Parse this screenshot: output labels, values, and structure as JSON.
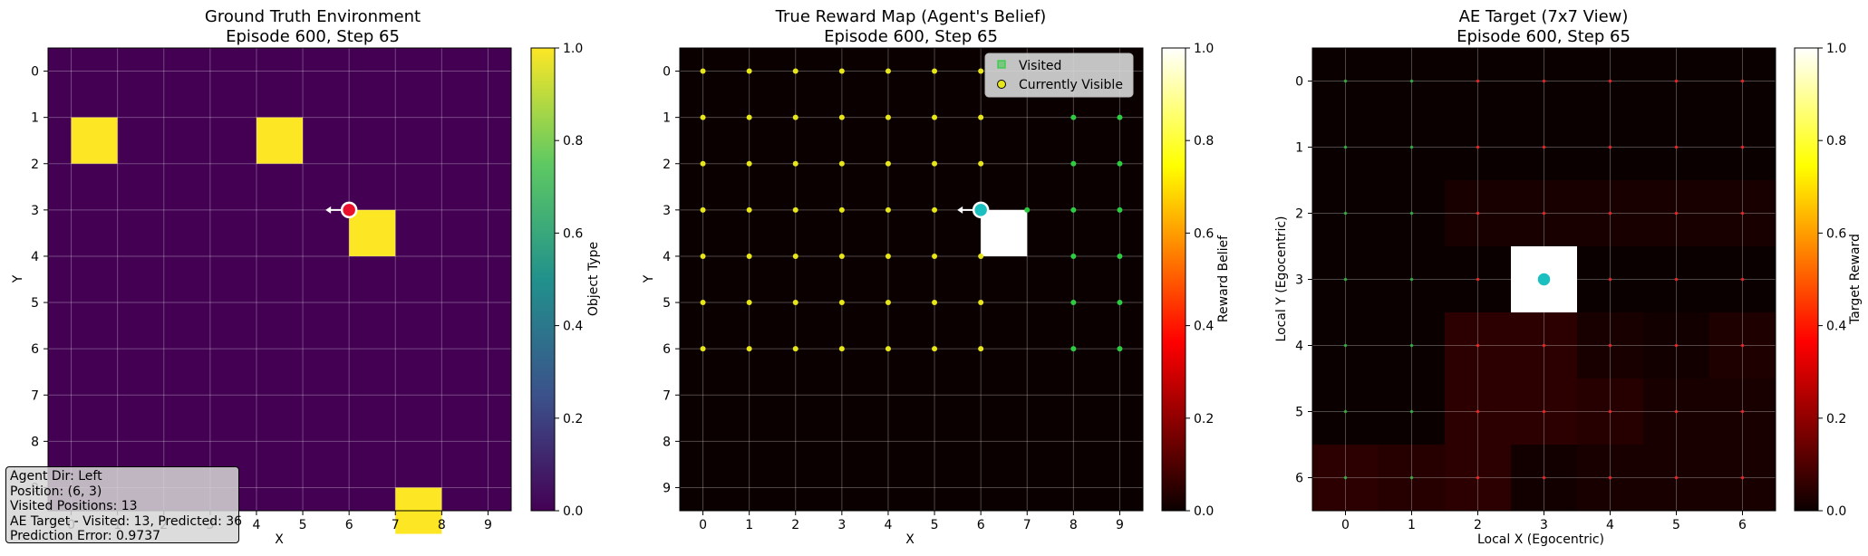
{
  "panels": [
    {
      "title_line1": "Ground Truth Environment",
      "title_line2": "Episode 600, Step 65",
      "xlabel": "X",
      "ylabel": "Y",
      "colorbar_label": "Object Type",
      "colorbar_ticks": [
        "0.0",
        "0.2",
        "0.4",
        "0.6",
        "0.8",
        "1.0"
      ]
    },
    {
      "title_line1": "True Reward Map (Agent's Belief)",
      "title_line2": "Episode 600, Step 65",
      "xlabel": "X",
      "ylabel": "Y",
      "colorbar_label": "Reward Belief",
      "colorbar_ticks": [
        "0.0",
        "0.2",
        "0.4",
        "0.6",
        "0.8",
        "1.0"
      ],
      "legend": [
        {
          "label": "Visited",
          "marker": "square",
          "color": "#2ecc40"
        },
        {
          "label": "Currently Visible",
          "marker": "circle",
          "color": "#e6e61a"
        }
      ]
    },
    {
      "title_line1": "AE Target (7x7 View)",
      "title_line2": "Episode 600, Step 65",
      "xlabel": "Local X (Egocentric)",
      "ylabel": "Local Y (Egocentric)",
      "colorbar_label": "Target Reward",
      "colorbar_ticks": [
        "0.0",
        "0.2",
        "0.4",
        "0.6",
        "0.8",
        "1.0"
      ]
    }
  ],
  "info_box": [
    "Agent Dir: Left",
    "Position: (6, 3)",
    "Visited Positions: 13",
    "AE Target - Visited: 13, Predicted: 36",
    "Prediction Error: 0.9737"
  ],
  "chart_data": [
    {
      "type": "heatmap",
      "x_ticks": [
        "0",
        "1",
        "2",
        "3",
        "4",
        "5",
        "6",
        "7",
        "8",
        "9"
      ],
      "y_ticks": [
        "0",
        "1",
        "2",
        "3",
        "4",
        "5",
        "6",
        "7",
        "8",
        "9"
      ],
      "xlim": [
        -0.5,
        9.5
      ],
      "ylim": [
        9.5,
        -0.5
      ],
      "vmin": 0,
      "vmax": 1,
      "colormap": "viridis",
      "background_value": 0,
      "objects": [
        {
          "x": 0,
          "y": 1,
          "value": 1.0
        },
        {
          "x": 4,
          "y": 1,
          "value": 1.0
        },
        {
          "x": 6,
          "y": 3,
          "value": 1.0
        },
        {
          "x": 7,
          "y": 9,
          "value": 1.0
        }
      ],
      "agent": {
        "x": 6,
        "y": 3,
        "direction": "left",
        "color": "#e8102a"
      },
      "grid": true
    },
    {
      "type": "heatmap",
      "x_ticks": [
        "0",
        "1",
        "2",
        "3",
        "4",
        "5",
        "6",
        "7",
        "8",
        "9"
      ],
      "y_ticks": [
        "0",
        "1",
        "2",
        "3",
        "4",
        "5",
        "6",
        "7",
        "8",
        "9"
      ],
      "xlim": [
        -0.5,
        9.5
      ],
      "ylim": [
        9.5,
        -0.5
      ],
      "vmin": 0,
      "vmax": 1,
      "colormap": "hot",
      "cells": [
        {
          "x": 6,
          "y": 3,
          "value": 1.0
        }
      ],
      "visible": [
        [
          0,
          0
        ],
        [
          1,
          0
        ],
        [
          2,
          0
        ],
        [
          3,
          0
        ],
        [
          4,
          0
        ],
        [
          5,
          0
        ],
        [
          6,
          0
        ],
        [
          0,
          1
        ],
        [
          1,
          1
        ],
        [
          2,
          1
        ],
        [
          3,
          1
        ],
        [
          4,
          1
        ],
        [
          5,
          1
        ],
        [
          6,
          1
        ],
        [
          0,
          2
        ],
        [
          1,
          2
        ],
        [
          2,
          2
        ],
        [
          3,
          2
        ],
        [
          4,
          2
        ],
        [
          5,
          2
        ],
        [
          6,
          2
        ],
        [
          0,
          3
        ],
        [
          1,
          3
        ],
        [
          2,
          3
        ],
        [
          3,
          3
        ],
        [
          4,
          3
        ],
        [
          5,
          3
        ],
        [
          0,
          4
        ],
        [
          1,
          4
        ],
        [
          2,
          4
        ],
        [
          3,
          4
        ],
        [
          4,
          4
        ],
        [
          5,
          4
        ],
        [
          6,
          4
        ],
        [
          0,
          5
        ],
        [
          1,
          5
        ],
        [
          2,
          5
        ],
        [
          3,
          5
        ],
        [
          4,
          5
        ],
        [
          5,
          5
        ],
        [
          6,
          5
        ],
        [
          0,
          6
        ],
        [
          1,
          6
        ],
        [
          2,
          6
        ],
        [
          3,
          6
        ],
        [
          4,
          6
        ],
        [
          5,
          6
        ],
        [
          6,
          6
        ]
      ],
      "visited": [
        [
          8,
          1
        ],
        [
          9,
          1
        ],
        [
          8,
          2
        ],
        [
          9,
          2
        ],
        [
          7,
          3
        ],
        [
          8,
          3
        ],
        [
          9,
          3
        ],
        [
          8,
          4
        ],
        [
          9,
          4
        ],
        [
          8,
          5
        ],
        [
          9,
          5
        ],
        [
          8,
          6
        ],
        [
          9,
          6
        ]
      ],
      "agent": {
        "x": 6,
        "y": 3,
        "direction": "left",
        "color": "#1bbfbf"
      },
      "grid": true
    },
    {
      "type": "heatmap",
      "x_ticks": [
        "0",
        "1",
        "2",
        "3",
        "4",
        "5",
        "6"
      ],
      "y_ticks": [
        "0",
        "1",
        "2",
        "3",
        "4",
        "5",
        "6"
      ],
      "xlim": [
        -0.5,
        6.5
      ],
      "ylim": [
        6.5,
        -0.5
      ],
      "vmin": 0,
      "vmax": 1,
      "colormap": "hot",
      "values": [
        [
          0.0,
          0.0,
          0.0,
          0.0,
          0.0,
          0.0,
          0.0
        ],
        [
          0.0,
          0.0,
          0.0,
          0.0,
          0.0,
          0.0,
          0.0
        ],
        [
          0.0,
          0.0,
          0.02,
          0.02,
          0.02,
          0.02,
          0.02
        ],
        [
          0.0,
          0.0,
          0.0,
          1.0,
          0.0,
          0.0,
          0.0
        ],
        [
          0.0,
          0.0,
          0.05,
          0.05,
          0.02,
          0.01,
          0.03
        ],
        [
          0.0,
          0.0,
          0.05,
          0.05,
          0.04,
          0.02,
          0.02
        ],
        [
          0.05,
          0.04,
          0.05,
          0.01,
          0.02,
          0.02,
          0.02
        ]
      ],
      "markers_green_columns": [
        0,
        1
      ],
      "markers_red_columns": [
        2,
        3,
        4,
        5,
        6
      ],
      "agent": {
        "x": 3,
        "y": 3,
        "direction": "left",
        "color": "#1bbfbf"
      },
      "grid": true
    }
  ]
}
